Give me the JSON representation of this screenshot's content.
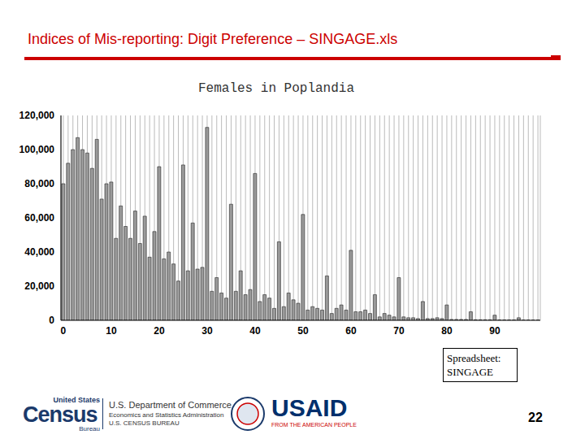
{
  "slide_title": "Indices of Mis-reporting: Digit Preference – SINGAGE.xls",
  "chart_data": {
    "type": "bar",
    "title": "Females in Poplandia",
    "categories": [
      "0",
      null,
      null,
      null,
      null,
      null,
      null,
      null,
      null,
      null,
      "10",
      null,
      null,
      null,
      null,
      null,
      null,
      null,
      null,
      null,
      "20",
      null,
      null,
      null,
      null,
      null,
      null,
      null,
      null,
      null,
      "30",
      null,
      null,
      null,
      null,
      null,
      null,
      null,
      null,
      null,
      "40",
      null,
      null,
      null,
      null,
      null,
      null,
      null,
      null,
      null,
      "50",
      null,
      null,
      null,
      null,
      null,
      null,
      null,
      null,
      null,
      "60",
      null,
      null,
      null,
      null,
      null,
      null,
      null,
      null,
      null,
      "70",
      null,
      null,
      null,
      null,
      null,
      null,
      null,
      null,
      null,
      "80",
      null,
      null,
      null,
      null,
      null,
      null,
      null,
      null,
      null,
      "90",
      null,
      null,
      null,
      null,
      null,
      null,
      null,
      null,
      null
    ],
    "values": [
      80000,
      92000,
      100000,
      107000,
      100000,
      98000,
      89000,
      106000,
      71000,
      80000,
      81000,
      48000,
      67000,
      55000,
      48000,
      64000,
      45000,
      61000,
      37000,
      52000,
      90000,
      36000,
      40000,
      33000,
      23000,
      91000,
      29000,
      57000,
      30000,
      31000,
      113000,
      17000,
      25000,
      16000,
      13000,
      68000,
      17000,
      29000,
      15000,
      18000,
      86000,
      11000,
      15000,
      13000,
      7000,
      46000,
      8000,
      16000,
      12000,
      10000,
      62000,
      6000,
      8000,
      7000,
      6000,
      26000,
      4000,
      7000,
      9000,
      6000,
      41000,
      5000,
      5000,
      6000,
      4000,
      15000,
      2000,
      4000,
      3000,
      2000,
      25000,
      2000,
      1500,
      1500,
      1000,
      11000,
      1000,
      1000,
      1500,
      1000,
      9000,
      500,
      500,
      500,
      500,
      5000,
      300,
      300,
      300,
      300,
      3000,
      200,
      200,
      200,
      200,
      1500,
      100,
      100,
      100,
      100
    ],
    "color": "#9a9a9a",
    "ylim": [
      0,
      120000
    ],
    "yticks": [
      0,
      {
        "value": 20000,
        "label": "20,000"
      },
      {
        "value": 40000,
        "label": "40,000"
      },
      {
        "value": 60000,
        "label": "60,000"
      },
      {
        "value": 80000,
        "label": "80,000"
      },
      {
        "value": 100000,
        "label": "100,000"
      },
      {
        "value": 120000,
        "label": "120,000"
      }
    ],
    "grid": true
  },
  "note": "Spreadsheet: SINGAGE",
  "footer": {
    "census_logo": [
      "United States",
      "Census",
      "Bureau"
    ],
    "commerce": [
      "U.S. Department of Commerce",
      "Economics and Statistics Administration",
      "U.S. CENSUS BUREAU"
    ],
    "usaid": [
      "USAID",
      "FROM THE AMERICAN PEOPLE"
    ]
  },
  "page_number": "22"
}
